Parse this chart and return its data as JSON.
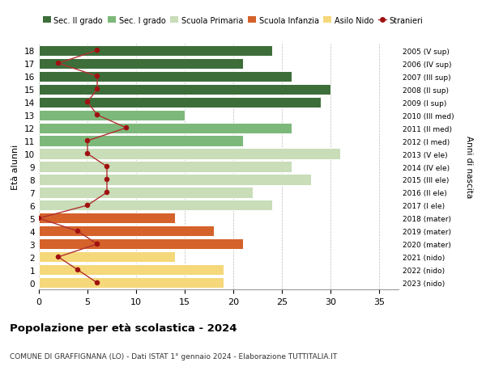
{
  "ages": [
    18,
    17,
    16,
    15,
    14,
    13,
    12,
    11,
    10,
    9,
    8,
    7,
    6,
    5,
    4,
    3,
    2,
    1,
    0
  ],
  "bar_values": [
    24,
    21,
    26,
    30,
    29,
    15,
    26,
    21,
    31,
    26,
    28,
    22,
    24,
    14,
    18,
    21,
    14,
    19,
    19
  ],
  "stranieri": [
    6,
    2,
    6,
    6,
    5,
    6,
    9,
    5,
    5,
    7,
    7,
    7,
    5,
    0,
    4,
    6,
    2,
    4,
    6
  ],
  "right_labels": [
    "2005 (V sup)",
    "2006 (IV sup)",
    "2007 (III sup)",
    "2008 (II sup)",
    "2009 (I sup)",
    "2010 (III med)",
    "2011 (II med)",
    "2012 (I med)",
    "2013 (V ele)",
    "2014 (IV ele)",
    "2015 (III ele)",
    "2016 (II ele)",
    "2017 (I ele)",
    "2018 (mater)",
    "2019 (mater)",
    "2020 (mater)",
    "2021 (nido)",
    "2022 (nido)",
    "2023 (nido)"
  ],
  "bar_colors_by_age": {
    "18": "#3d6e3a",
    "17": "#3d6e3a",
    "16": "#3d6e3a",
    "15": "#3d6e3a",
    "14": "#3d6e3a",
    "13": "#7cb87a",
    "12": "#7cb87a",
    "11": "#7cb87a",
    "10": "#c8ddb8",
    "9": "#c8ddb8",
    "8": "#c8ddb8",
    "7": "#c8ddb8",
    "6": "#c8ddb8",
    "5": "#d4622a",
    "4": "#d4622a",
    "3": "#d4622a",
    "2": "#f5d87a",
    "1": "#f5d87a",
    "0": "#f5d87a"
  },
  "stranieri_color": "#a01010",
  "line_color": "#b03030",
  "title": "Popolazione per età scolastica - 2024",
  "subtitle": "COMUNE DI GRAFFIGNANA (LO) - Dati ISTAT 1° gennaio 2024 - Elaborazione TUTTITALIA.IT",
  "ylabel": "Età alunni",
  "right_ylabel": "Anni di nascita",
  "xlim": [
    0,
    37
  ],
  "xticks": [
    0,
    5,
    10,
    15,
    20,
    25,
    30,
    35
  ],
  "background_color": "#ffffff",
  "legend_entries": [
    "Sec. II grado",
    "Sec. I grado",
    "Scuola Primaria",
    "Scuola Infanzia",
    "Asilo Nido",
    "Stranieri"
  ],
  "legend_colors": [
    "#3d6e3a",
    "#7cb87a",
    "#c8ddb8",
    "#d4622a",
    "#f5d87a",
    "#a01010"
  ]
}
